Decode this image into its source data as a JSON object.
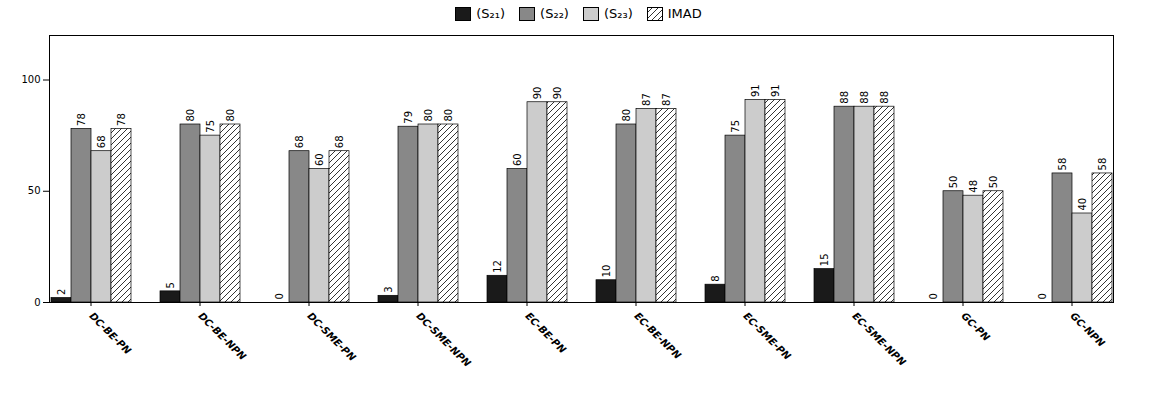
{
  "chart_data": {
    "type": "bar",
    "categories": [
      "DC-BE-PN",
      "DC-BE-NPN",
      "DC-SME-PN",
      "DC-SME-NPN",
      "EC-BE-PN",
      "EC-BE-NPN",
      "EC-SME-PN",
      "EC-SME-NPN",
      "GC-PN",
      "GC-NPN"
    ],
    "series": [
      {
        "name": "(S₂₁)",
        "color": "#1a1a1a",
        "values": [
          2,
          5,
          0,
          3,
          12,
          10,
          8,
          15,
          0,
          0
        ]
      },
      {
        "name": "(S₂₂)",
        "color": "#888888",
        "values": [
          78,
          80,
          68,
          79,
          60,
          80,
          75,
          88,
          50,
          58
        ]
      },
      {
        "name": "(S₂₃)",
        "color": "#cccccc",
        "values": [
          68,
          75,
          60,
          80,
          90,
          87,
          91,
          88,
          48,
          40
        ]
      },
      {
        "name": "IMAD",
        "color": "#ffffff",
        "values": [
          78,
          80,
          68,
          80,
          90,
          87,
          91,
          88,
          50,
          58
        ]
      }
    ],
    "ylim": [
      0,
      120
    ],
    "yticks": [
      0,
      50,
      100
    ],
    "data_labels": true,
    "legend": "top",
    "grid": false
  }
}
